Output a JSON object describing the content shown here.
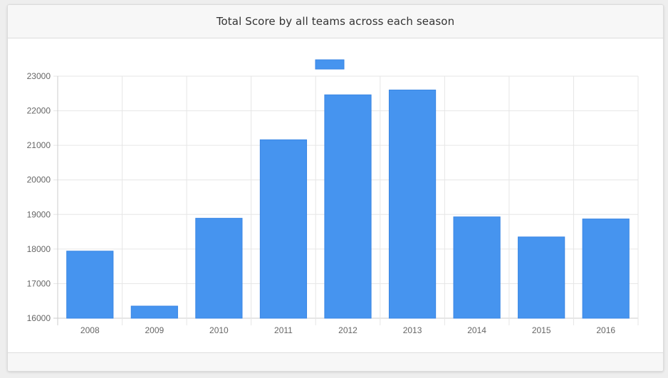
{
  "header": {
    "title": "Total Score by all teams across each season"
  },
  "colors": {
    "bar": "#4694ef",
    "grid": "#e6e6e6",
    "axis": "#cccccc",
    "tick_text": "#666666"
  },
  "chart_data": {
    "type": "bar",
    "title": "Total Score by all teams across each season",
    "xlabel": "",
    "ylabel": "",
    "categories": [
      "2008",
      "2009",
      "2010",
      "2011",
      "2012",
      "2013",
      "2014",
      "2015",
      "2016"
    ],
    "series": [
      {
        "values": [
          17940,
          16350,
          18890,
          21160,
          22460,
          22600,
          18930,
          18350,
          18870
        ]
      }
    ],
    "ylim": [
      16000,
      23000
    ],
    "yticks": [
      "16000",
      "17000",
      "18000",
      "19000",
      "20000",
      "21000",
      "22000",
      "23000"
    ],
    "grid": true,
    "legend": "top-center"
  }
}
